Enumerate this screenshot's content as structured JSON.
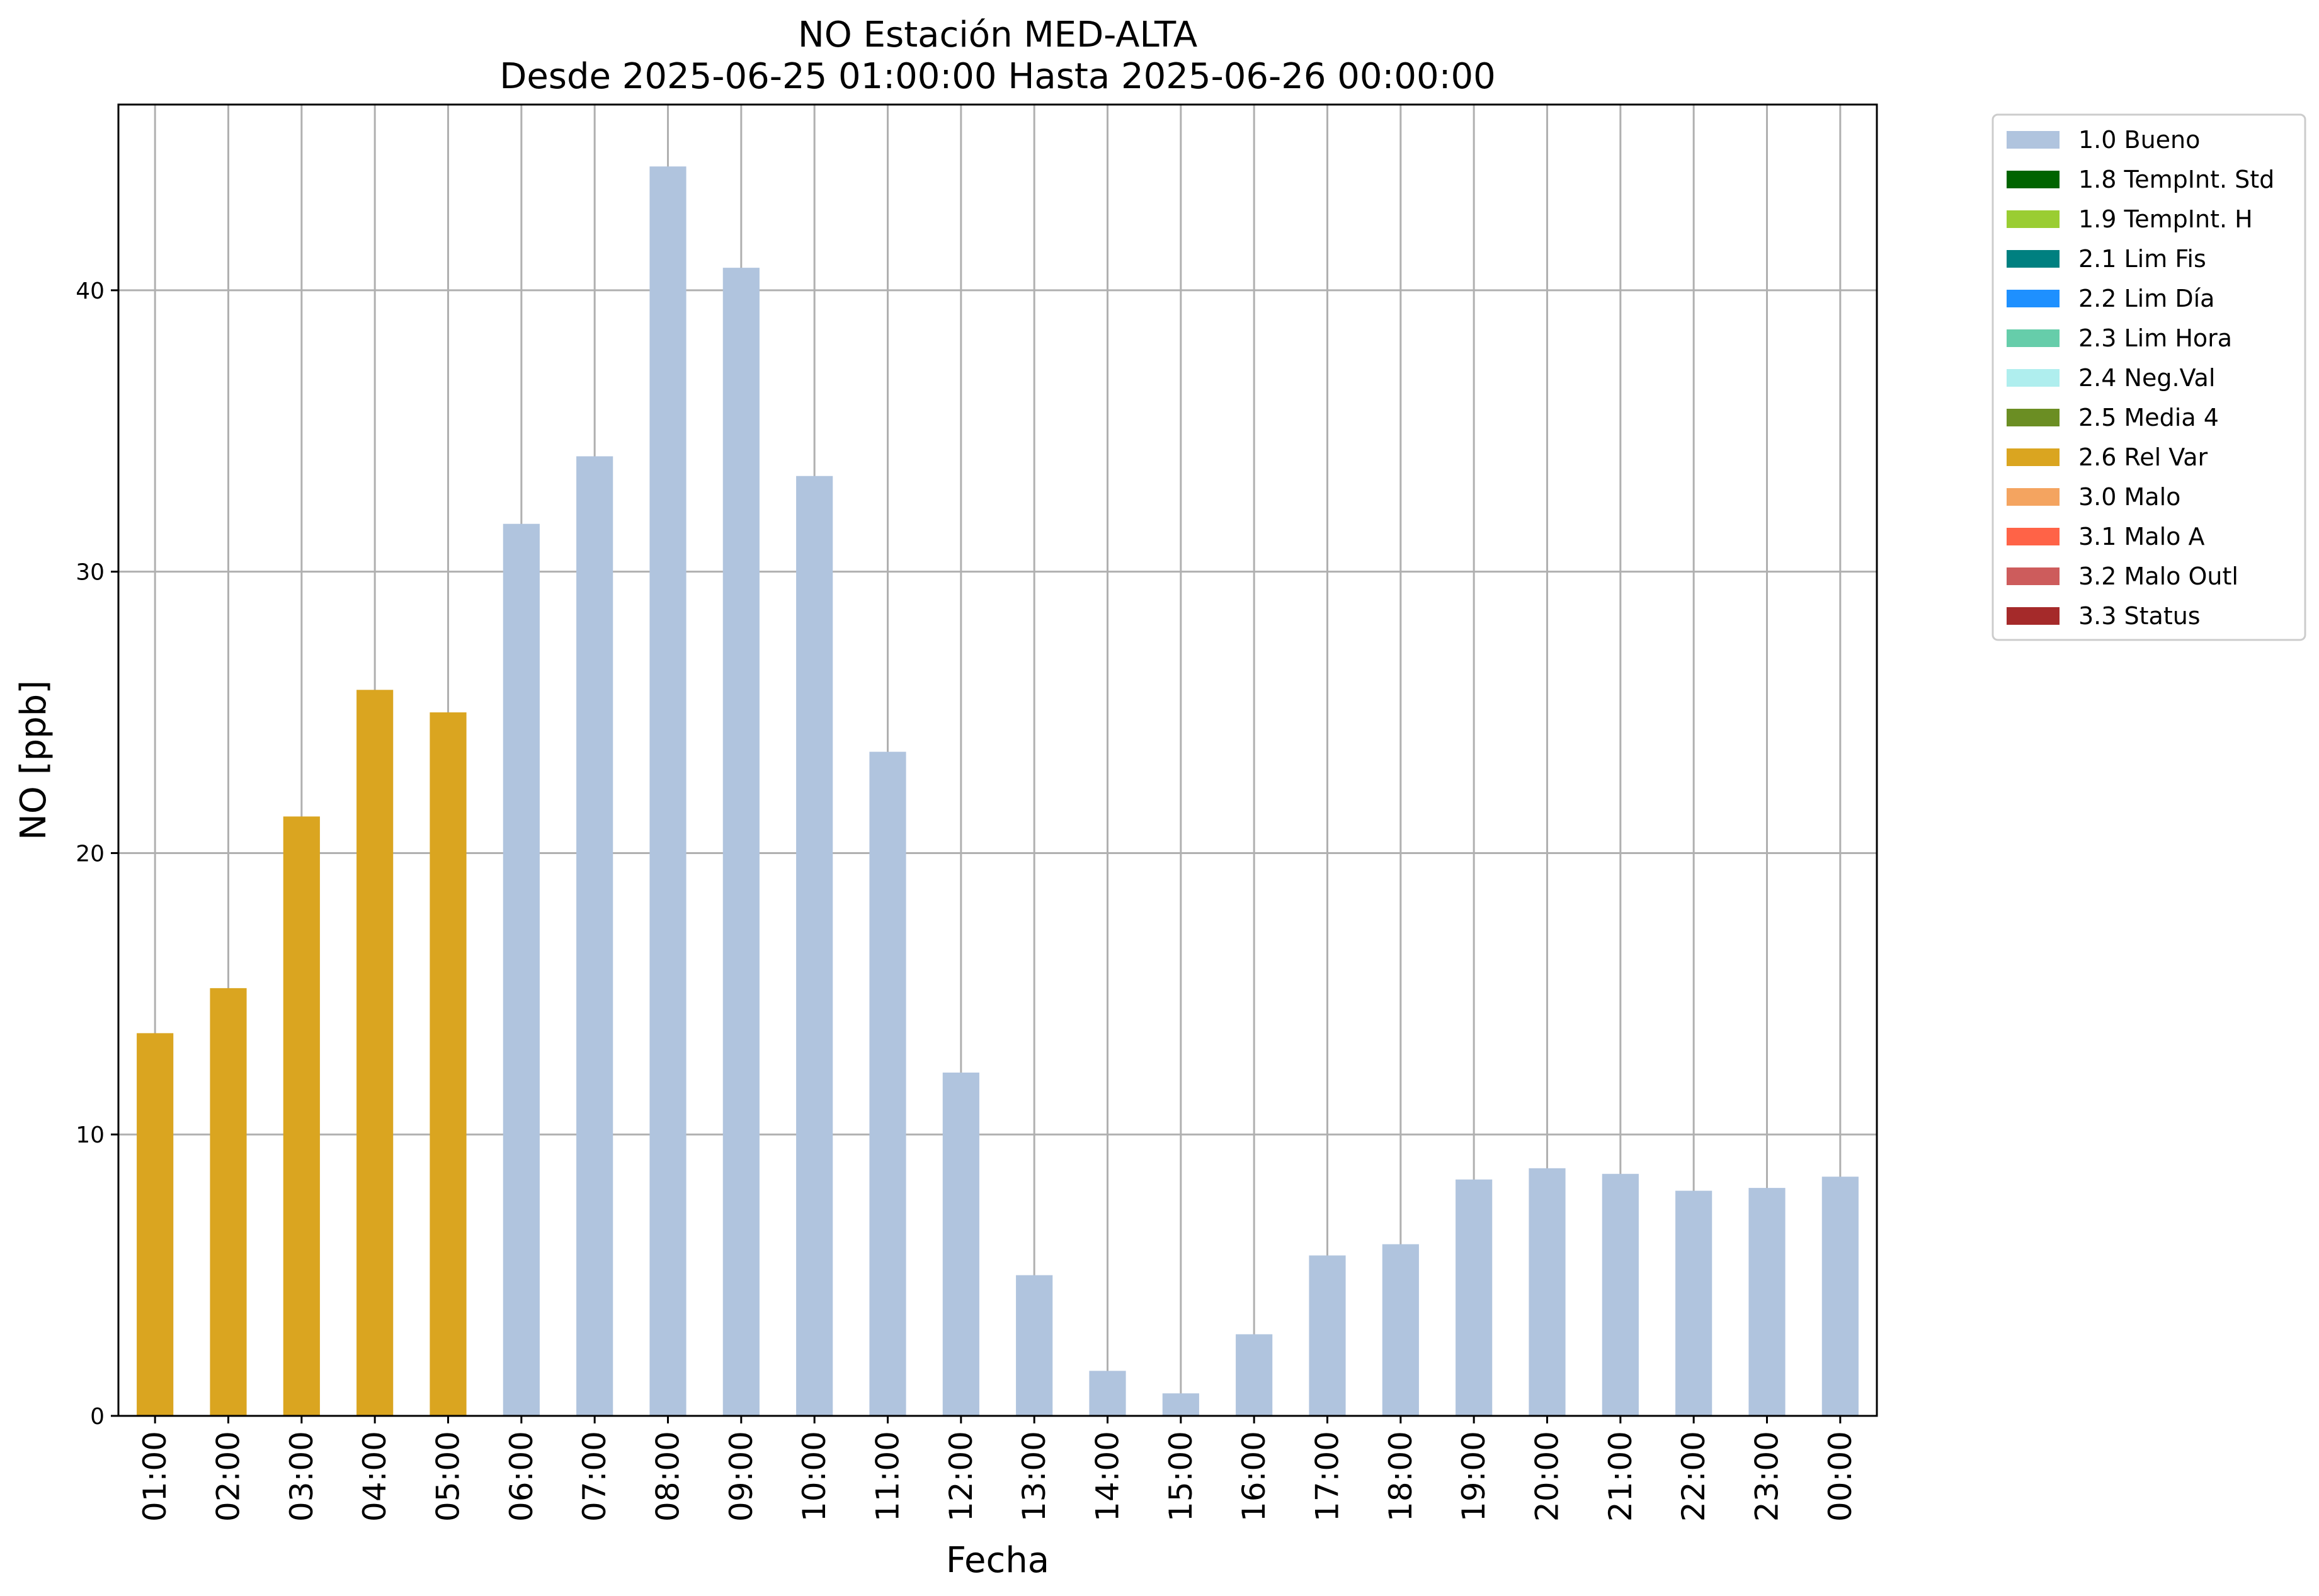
{
  "chart_data": {
    "type": "bar",
    "title": "NO Estación MED-ALTA",
    "subtitle": "Desde 2025-06-25 01:00:00 Hasta 2025-06-26 00:00:00",
    "xlabel": "Fecha",
    "ylabel": "NO [ppb]",
    "ylim": [
      0,
      46.6
    ],
    "yticks": [
      0,
      10,
      20,
      30,
      40
    ],
    "grid": true,
    "legend_position": "outside-top-right",
    "categories": [
      "01:00",
      "02:00",
      "03:00",
      "04:00",
      "05:00",
      "06:00",
      "07:00",
      "08:00",
      "09:00",
      "10:00",
      "11:00",
      "12:00",
      "13:00",
      "14:00",
      "15:00",
      "16:00",
      "17:00",
      "18:00",
      "19:00",
      "20:00",
      "21:00",
      "22:00",
      "23:00",
      "00:00"
    ],
    "values": [
      13.6,
      15.2,
      21.3,
      25.8,
      25.0,
      31.7,
      34.1,
      44.4,
      40.8,
      33.4,
      23.6,
      12.2,
      5.0,
      1.6,
      0.8,
      2.9,
      5.7,
      6.1,
      8.4,
      8.8,
      8.6,
      8.0,
      8.1,
      8.5
    ],
    "flags": [
      "2.6 Rel Var",
      "2.6 Rel Var",
      "2.6 Rel Var",
      "2.6 Rel Var",
      "2.6 Rel Var",
      "1.0 Bueno",
      "1.0 Bueno",
      "1.0 Bueno",
      "1.0 Bueno",
      "1.0 Bueno",
      "1.0 Bueno",
      "1.0 Bueno",
      "1.0 Bueno",
      "1.0 Bueno",
      "1.0 Bueno",
      "1.0 Bueno",
      "1.0 Bueno",
      "1.0 Bueno",
      "1.0 Bueno",
      "1.0 Bueno",
      "1.0 Bueno",
      "1.0 Bueno",
      "1.0 Bueno",
      "1.0 Bueno"
    ],
    "legend": [
      {
        "label": "1.0 Bueno",
        "color": "#b0c4de"
      },
      {
        "label": "1.8 TempInt. Std",
        "color": "#006400"
      },
      {
        "label": "1.9 TempInt. H",
        "color": "#9acd32"
      },
      {
        "label": "2.1 Lim Fis",
        "color": "#008080"
      },
      {
        "label": "2.2 Lim Día",
        "color": "#1e90ff"
      },
      {
        "label": "2.3 Lim Hora",
        "color": "#66cdaa"
      },
      {
        "label": "2.4 Neg.Val",
        "color": "#afeeee"
      },
      {
        "label": "2.5 Media 4",
        "color": "#6b8e23"
      },
      {
        "label": "2.6 Rel Var",
        "color": "#daa520"
      },
      {
        "label": "3.0 Malo",
        "color": "#f4a460"
      },
      {
        "label": "3.1 Malo A",
        "color": "#ff6347"
      },
      {
        "label": "3.2 Malo Outl",
        "color": "#cd5c5c"
      },
      {
        "label": "3.3 Status",
        "color": "#a52a2a"
      }
    ]
  }
}
